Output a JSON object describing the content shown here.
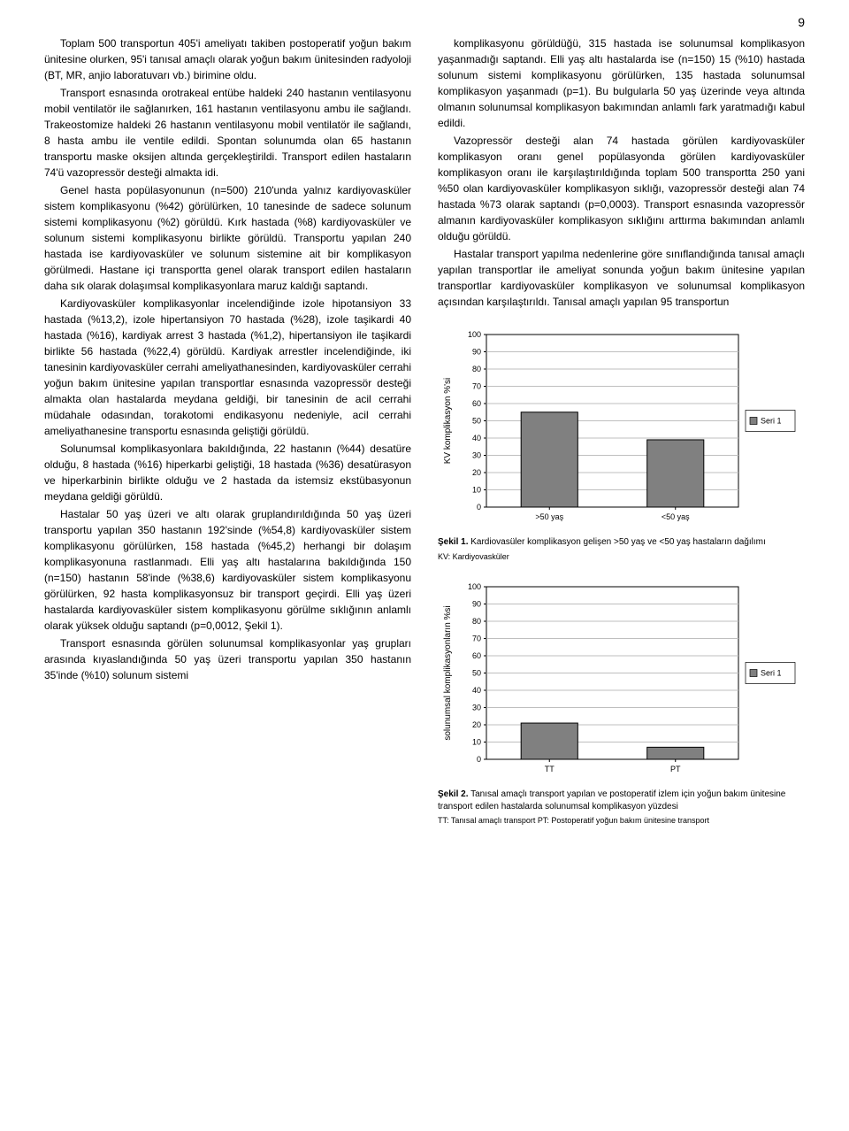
{
  "page_number": "9",
  "left_column": {
    "p1": "Toplam 500 transportun 405'i ameliyatı takiben postoperatif yoğun bakım ünitesine olurken, 95'i tanısal amaçlı olarak yoğun bakım ünitesinden radyoloji (BT, MR, anjio laboratuvarı vb.) birimine oldu.",
    "p2": "Transport esnasında orotrakeal entübe haldeki 240 hastanın ventilasyonu mobil ventilatör ile sağlanırken, 161 hastanın ventilasyonu ambu ile sağlandı. Trakeostomize haldeki 26 hastanın ventilasyonu mobil ventilatör ile sağlandı, 8 hasta ambu ile ventile edildi. Spontan solunumda olan 65 hastanın transportu maske oksijen altında gerçekleştirildi. Transport edilen hastaların 74'ü vazopressör desteği almakta idi.",
    "p3": "Genel hasta popülasyonunun (n=500) 210'unda yalnız kardiyovasküler sistem komplikasyonu (%42) görülürken, 10 tanesinde de sadece solunum sistemi komplikasyonu (%2) görüldü. Kırk hastada (%8) kardiyovasküler ve solunum sistemi komplikasyonu birlikte görüldü. Transportu yapılan 240 hastada ise kardiyovasküler ve solunum sistemine ait bir komplikasyon görülmedi. Hastane içi transportta genel olarak transport edilen hastaların daha sık olarak dolaşımsal komplikasyonlara maruz kaldığı saptandı.",
    "p4": "Kardiyovasküler komplikasyonlar incelendiğinde izole hipotansiyon 33 hastada (%13,2), izole hipertansiyon 70 hastada (%28), izole taşikardi 40 hastada (%16), kardiyak arrest 3 hastada (%1,2), hipertansiyon ile taşikardi birlikte 56 hastada (%22,4) görüldü. Kardiyak arrestler incelendiğinde, iki tanesinin kardiyovasküler cerrahi ameliyathanesinden, kardiyovasküler cerrahi yoğun bakım ünitesine yapılan transportlar esnasında vazopressör desteği almakta olan hastalarda meydana geldiği, bir tanesinin de acil cerrahi müdahale odasından, torakotomi endikasyonu nedeniyle, acil cerrahi ameliyathanesine transportu esnasında geliştiği görüldü.",
    "p5": "Solunumsal komplikasyonlara bakıldığında, 22 hastanın (%44) desatüre olduğu, 8 hastada (%16) hiperkarbi geliştiği, 18 hastada (%36) desatürasyon ve hiperkarbinin birlikte olduğu ve 2 hastada da istemsiz ekstübasyonun meydana geldiği görüldü.",
    "p6": "Hastalar 50 yaş üzeri ve altı olarak gruplandırıldığında 50 yaş üzeri transportu yapılan 350 hastanın 192'sinde (%54,8) kardiyovasküler sistem komplikasyonu görülürken, 158 hastada (%45,2) herhangi bir dolaşım komplikasyonuna rastlanmadı. Elli yaş altı hastalarına bakıldığında 150 (n=150) hastanın 58'inde (%38,6) kardiyovasküler sistem komplikasyonu görülürken, 92 hasta komplikasyonsuz bir transport geçirdi. Elli yaş üzeri hastalarda kardiyovasküler sistem komplikasyonu görülme sıklığının anlamlı olarak yüksek olduğu saptandı (p=0,0012, Şekil 1).",
    "p7": "Transport esnasında görülen solunumsal komplikasyonlar yaş grupları arasında kıyaslandığında 50 yaş üzeri transportu yapılan 350 hastanın 35'inde (%10) solunum sistemi"
  },
  "right_column": {
    "p1": "komplikasyonu görüldüğü, 315 hastada ise solunumsal komplikasyon yaşanmadığı saptandı. Elli yaş altı hastalarda ise (n=150) 15 (%10) hastada solunum sistemi komplikasyonu görülürken, 135 hastada solunumsal komplikasyon yaşanmadı (p=1). Bu bulgularla 50 yaş üzerinde veya altında olmanın solunumsal komplikasyon bakımından anlamlı fark yaratmadığı kabul edildi.",
    "p2": "Vazopressör desteği alan 74 hastada görülen kardiyovasküler komplikasyon oranı genel popülasyonda görülen kardiyovasküler komplikasyon oranı ile karşılaştırıldığında toplam 500 transportta 250 yani %50 olan kardiyovasküler komplikasyon sıklığı, vazopressör desteği alan 74 hastada %73 olarak saptandı (p=0,0003). Transport esnasında vazopressör almanın kardiyovasküler komplikasyon sıklığını arttırma bakımından anlamlı olduğu görüldü.",
    "p3": "Hastalar transport yapılma nedenlerine göre sınıflandığında tanısal amaçlı yapılan transportlar ile ameliyat sonunda yoğun bakım ünitesine yapılan transportlar kardiyovasküler komplikasyon ve solunumsal komplikasyon açısından karşılaştırıldı. Tanısal amaçlı yapılan 95 transportun"
  },
  "chart1": {
    "type": "bar",
    "ylabel": "KV komplikasyon %'si",
    "categories": [
      ">50 yaş",
      "<50 yaş"
    ],
    "values": [
      55,
      39
    ],
    "ylim": [
      0,
      100
    ],
    "ytick_step": 10,
    "bar_color": "#808080",
    "bar_border": "#000000",
    "grid_color": "#bfbfbf",
    "background_color": "#ffffff",
    "legend_label": "Seri 1"
  },
  "caption1": {
    "bold": "Şekil 1.",
    "text": " Kardiovasüler komplikasyon gelişen >50 yaş ve <50 yaş hastaların dağılımı",
    "sub": "KV: Kardiyovasküler"
  },
  "chart2": {
    "type": "bar",
    "ylabel": "solunumsal komplikasyonların %si",
    "categories": [
      "TT",
      "PT"
    ],
    "values": [
      21,
      7
    ],
    "ylim": [
      0,
      100
    ],
    "ytick_step": 10,
    "bar_color": "#808080",
    "bar_border": "#000000",
    "grid_color": "#bfbfbf",
    "background_color": "#ffffff",
    "legend_label": "Seri 1"
  },
  "caption2": {
    "bold": "Şekil 2.",
    "text": " Tanısal amaçlı transport yapılan ve postoperatif izlem için yoğun bakım ünitesine transport edilen hastalarda solunumsal komplikasyon yüzdesi",
    "sub": "TT: Tanısal amaçlı transport PT: Postoperatif yoğun bakım ünitesine transport"
  }
}
